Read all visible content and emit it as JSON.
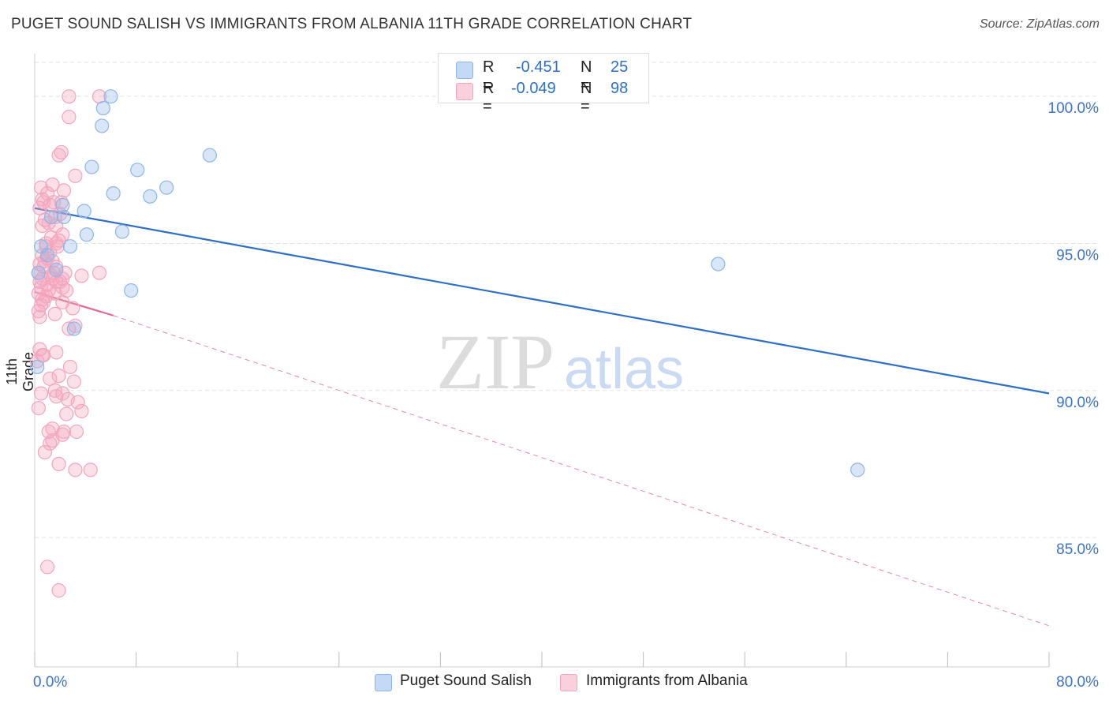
{
  "title": "PUGET SOUND SALISH VS IMMIGRANTS FROM ALBANIA 11TH GRADE CORRELATION CHART",
  "source": "Source: ZipAtlas.com",
  "watermark": {
    "zip": "ZIP",
    "atlas": "atlas"
  },
  "colors": {
    "blue": "#8fb6e8",
    "blue_line": "#2f6fc4",
    "pink": "#f4a5bd",
    "pink_line": "#e06a92",
    "axis_text": "#3a74c8"
  },
  "stats": {
    "rows": [
      {
        "r_label": "R =",
        "r_value": "-0.451",
        "n_label": "N =",
        "n_value": "25"
      },
      {
        "r_label": "R =",
        "r_value": "-0.049",
        "n_label": "N =",
        "n_value": "98"
      }
    ]
  },
  "legend": [
    "Puget Sound Salish",
    "Immigrants from Albania"
  ],
  "chart_data": {
    "type": "scatter",
    "ylabel": "11th Grade",
    "xlim": [
      0,
      80
    ],
    "ylim": [
      80.6,
      101.4
    ],
    "x_tick_labels": [
      "0.0%",
      "80.0%"
    ],
    "y_tick_labels": [
      "100.0%",
      "95.0%",
      "90.0%",
      "85.0%"
    ],
    "y_ticks": [
      100,
      95,
      90,
      85
    ],
    "series": [
      {
        "name": "Puget Sound Salish",
        "points": [
          [
            6.0,
            100.0
          ],
          [
            5.4,
            99.6
          ],
          [
            5.3,
            99.0
          ],
          [
            13.8,
            98.0
          ],
          [
            4.5,
            97.6
          ],
          [
            8.1,
            97.5
          ],
          [
            6.2,
            96.7
          ],
          [
            10.4,
            96.9
          ],
          [
            9.1,
            96.6
          ],
          [
            2.2,
            96.3
          ],
          [
            3.9,
            96.1
          ],
          [
            2.3,
            95.9
          ],
          [
            1.3,
            95.9
          ],
          [
            6.9,
            95.4
          ],
          [
            4.1,
            95.3
          ],
          [
            0.5,
            94.9
          ],
          [
            2.8,
            94.9
          ],
          [
            1.0,
            94.6
          ],
          [
            53.9,
            94.3
          ],
          [
            1.7,
            94.1
          ],
          [
            7.6,
            93.4
          ],
          [
            3.1,
            92.1
          ],
          [
            0.2,
            90.8
          ],
          [
            64.9,
            87.3
          ],
          [
            0.3,
            94.0
          ]
        ],
        "trend": {
          "x": [
            0,
            80
          ],
          "y": [
            96.2,
            89.9
          ]
        }
      },
      {
        "name": "Immigrants from Albania",
        "points": [
          [
            2.7,
            100.0
          ],
          [
            5.1,
            100.0
          ],
          [
            2.7,
            99.3
          ],
          [
            1.9,
            98.0
          ],
          [
            2.1,
            98.1
          ],
          [
            3.2,
            97.3
          ],
          [
            1.4,
            97.0
          ],
          [
            0.5,
            96.9
          ],
          [
            2.3,
            96.8
          ],
          [
            1.0,
            96.7
          ],
          [
            0.6,
            96.5
          ],
          [
            1.5,
            96.4
          ],
          [
            2.1,
            96.4
          ],
          [
            0.4,
            96.2
          ],
          [
            1.2,
            96.3
          ],
          [
            2.0,
            96.0
          ],
          [
            1.6,
            95.9
          ],
          [
            0.8,
            95.8
          ],
          [
            0.6,
            95.6
          ],
          [
            1.7,
            95.6
          ],
          [
            2.2,
            95.3
          ],
          [
            1.3,
            95.2
          ],
          [
            1.7,
            95.0
          ],
          [
            0.9,
            94.9
          ],
          [
            1.2,
            94.7
          ],
          [
            0.6,
            94.6
          ],
          [
            1.0,
            94.5
          ],
          [
            1.4,
            94.4
          ],
          [
            0.4,
            94.3
          ],
          [
            1.7,
            94.2
          ],
          [
            0.7,
            94.2
          ],
          [
            5.1,
            94.0
          ],
          [
            3.7,
            93.9
          ],
          [
            0.6,
            93.8
          ],
          [
            1.4,
            93.8
          ],
          [
            2.2,
            93.8
          ],
          [
            1.7,
            93.7
          ],
          [
            2.2,
            93.5
          ],
          [
            0.5,
            93.5
          ],
          [
            1.1,
            93.4
          ],
          [
            1.6,
            93.3
          ],
          [
            0.3,
            93.3
          ],
          [
            0.9,
            93.2
          ],
          [
            2.2,
            93.0
          ],
          [
            0.7,
            93.0
          ],
          [
            3.0,
            92.8
          ],
          [
            0.3,
            92.7
          ],
          [
            1.6,
            92.6
          ],
          [
            0.4,
            92.5
          ],
          [
            3.2,
            92.2
          ],
          [
            2.7,
            92.1
          ],
          [
            0.4,
            91.4
          ],
          [
            0.7,
            91.2
          ],
          [
            1.7,
            91.3
          ],
          [
            2.8,
            90.8
          ],
          [
            1.9,
            90.5
          ],
          [
            1.2,
            90.4
          ],
          [
            3.1,
            90.3
          ],
          [
            1.6,
            90.0
          ],
          [
            0.5,
            89.9
          ],
          [
            1.7,
            89.8
          ],
          [
            2.6,
            89.7
          ],
          [
            3.4,
            89.6
          ],
          [
            0.3,
            89.4
          ],
          [
            3.7,
            89.3
          ],
          [
            2.5,
            89.2
          ],
          [
            1.4,
            88.7
          ],
          [
            1.1,
            88.6
          ],
          [
            2.3,
            88.6
          ],
          [
            3.3,
            88.6
          ],
          [
            2.2,
            88.5
          ],
          [
            1.4,
            88.3
          ],
          [
            1.2,
            88.2
          ],
          [
            0.8,
            87.9
          ],
          [
            1.9,
            87.5
          ],
          [
            3.2,
            87.3
          ],
          [
            4.4,
            87.3
          ],
          [
            1.0,
            84.0
          ],
          [
            1.9,
            83.2
          ],
          [
            0.2,
            91.0
          ],
          [
            0.5,
            92.9
          ],
          [
            1.0,
            93.6
          ],
          [
            1.5,
            94.0
          ],
          [
            0.8,
            94.4
          ],
          [
            0.4,
            93.7
          ],
          [
            1.9,
            95.1
          ],
          [
            2.4,
            94.0
          ],
          [
            0.6,
            91.2
          ],
          [
            2.2,
            89.9
          ],
          [
            1.3,
            93.9
          ],
          [
            0.9,
            95.0
          ],
          [
            1.8,
            94.9
          ],
          [
            0.6,
            93.1
          ],
          [
            2.5,
            93.4
          ],
          [
            0.3,
            94.0
          ],
          [
            1.1,
            95.7
          ],
          [
            2.0,
            93.7
          ],
          [
            0.7,
            96.4
          ]
        ],
        "trend_solid": {
          "x": [
            0,
            6.2
          ],
          "y": [
            93.35,
            92.55
          ]
        },
        "trend_dashed": {
          "x": [
            6.2,
            80
          ],
          "y": [
            92.55,
            82.0
          ]
        }
      }
    ]
  }
}
